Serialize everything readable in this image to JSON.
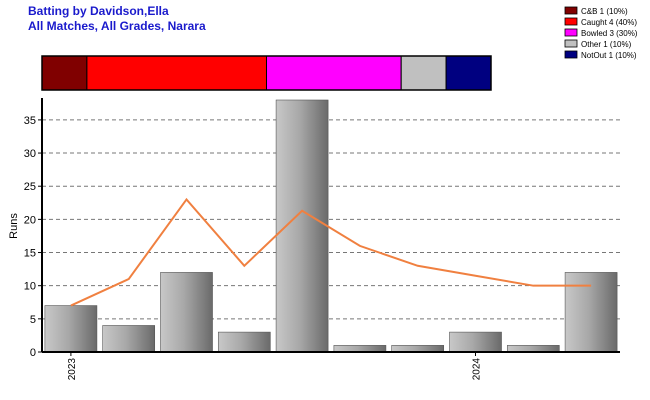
{
  "header": {
    "title": "Batting by Davidson,Ella",
    "subtitle": "All Matches, All Grades, Narara"
  },
  "legend": {
    "placement": "top-right",
    "items": [
      {
        "label": "C&B 1 (10%)",
        "color": "#800000"
      },
      {
        "label": "Caught 4 (40%)",
        "color": "#ff0000"
      },
      {
        "label": "Bowled 3 (30%)",
        "color": "#ff00ff"
      },
      {
        "label": "Other 1 (10%)",
        "color": "#c0c0c0"
      },
      {
        "label": "NotOut 1 (10%)",
        "color": "#000080"
      }
    ]
  },
  "chart_data": [
    {
      "type": "bar",
      "name": "dismissal-breakdown",
      "orientation": "horizontal-stacked",
      "segments": [
        {
          "label": "C&B",
          "count": 1,
          "percent": 10,
          "color": "#800000"
        },
        {
          "label": "Caught",
          "count": 4,
          "percent": 40,
          "color": "#ff0000"
        },
        {
          "label": "Bowled",
          "count": 3,
          "percent": 30,
          "color": "#ff00ff"
        },
        {
          "label": "Other",
          "count": 1,
          "percent": 10,
          "color": "#c0c0c0"
        },
        {
          "label": "NotOut",
          "count": 1,
          "percent": 10,
          "color": "#000080"
        }
      ]
    },
    {
      "type": "bar",
      "name": "runs-per-innings",
      "ylabel": "Runs",
      "ylim": [
        0,
        38
      ],
      "yticks": [
        0,
        5,
        10,
        15,
        20,
        25,
        30,
        35
      ],
      "grid": true,
      "x_tick_labels": [
        {
          "index": 0,
          "label": "2023"
        },
        {
          "index": 7,
          "label": "2024"
        }
      ],
      "values": [
        7,
        4,
        12,
        3,
        38,
        1,
        1,
        3,
        1,
        12
      ],
      "line": {
        "type": "line",
        "color": "#f08040",
        "values": [
          7,
          11,
          23,
          13,
          21.3,
          16,
          13,
          11.5,
          10,
          10
        ]
      }
    }
  ]
}
